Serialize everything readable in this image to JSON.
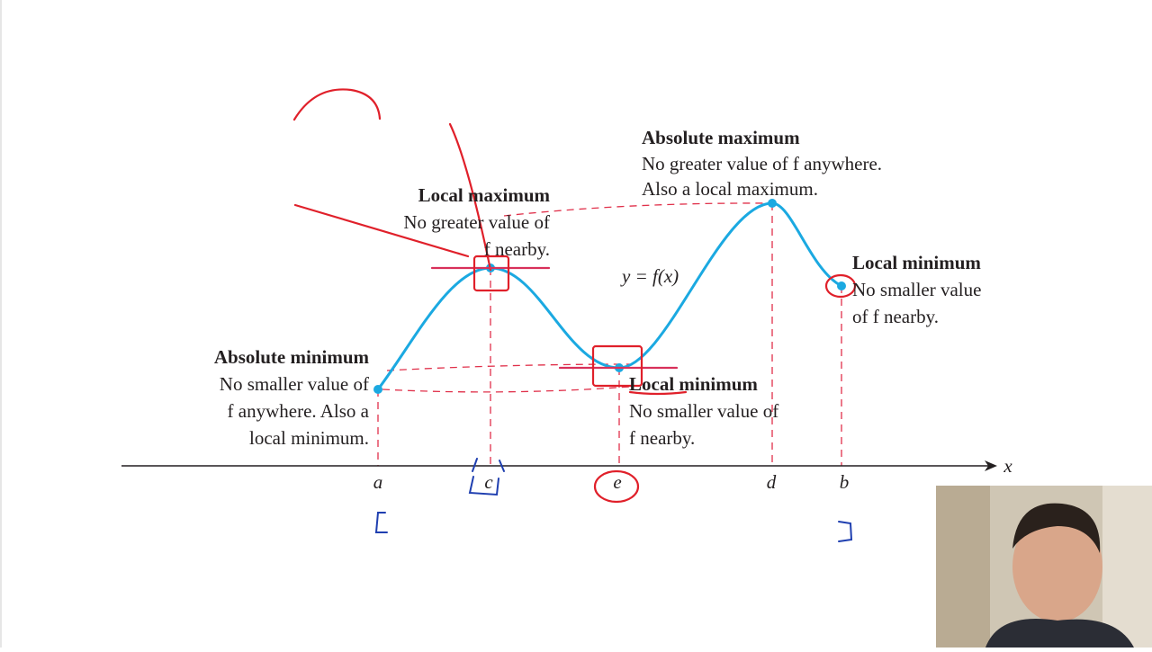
{
  "annotations": {
    "absolute_maximum": {
      "title": "Absolute maximum",
      "lines": [
        "No greater value of f anywhere.",
        "Also a local maximum."
      ]
    },
    "local_maximum": {
      "title": "Local maximum",
      "lines": [
        "No greater value of",
        "f nearby."
      ]
    },
    "absolute_minimum": {
      "title": "Absolute minimum",
      "lines": [
        "No smaller value of",
        "f anywhere. Also a",
        "local minimum."
      ]
    },
    "local_minimum_middle": {
      "title": "Local minimum",
      "lines": [
        "No smaller value of",
        "f nearby."
      ]
    },
    "local_minimum_right": {
      "title": "Local minimum",
      "lines": [
        "No smaller value",
        "of f nearby."
      ]
    }
  },
  "curve_label": "y = f(x)",
  "axis": {
    "label": "x",
    "points": [
      "a",
      "c",
      "e",
      "d",
      "b"
    ]
  }
}
